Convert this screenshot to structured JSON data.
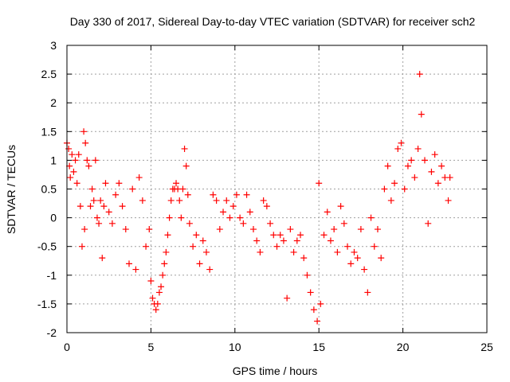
{
  "chart_data": {
    "type": "scatter",
    "title": "Day 330 of 2017, Sidereal Day-to-day VTEC variation (SDTVAR) for receiver sch2",
    "xlabel": "GPS time / hours",
    "ylabel": "SDTVAR / TECUs",
    "xlim": [
      0,
      25
    ],
    "ylim": [
      -2,
      3
    ],
    "xticks": [
      0,
      5,
      10,
      15,
      20,
      25
    ],
    "yticks": [
      -2,
      -1.5,
      -1,
      -0.5,
      0,
      0.5,
      1,
      1.5,
      2,
      2.5,
      3
    ],
    "grid": true,
    "marker": "+",
    "series": [
      {
        "name": "sch2",
        "color": "#ff0000",
        "points": [
          [
            0.0,
            1.3
          ],
          [
            0.1,
            1.2
          ],
          [
            0.15,
            0.9
          ],
          [
            0.2,
            0.7
          ],
          [
            0.3,
            1.1
          ],
          [
            0.4,
            0.8
          ],
          [
            0.5,
            1.0
          ],
          [
            0.6,
            0.6
          ],
          [
            0.7,
            1.1
          ],
          [
            0.8,
            0.2
          ],
          [
            0.9,
            -0.5
          ],
          [
            1.0,
            1.5
          ],
          [
            1.05,
            -0.2
          ],
          [
            1.1,
            1.3
          ],
          [
            1.2,
            1.0
          ],
          [
            1.3,
            0.9
          ],
          [
            1.4,
            0.2
          ],
          [
            1.5,
            0.5
          ],
          [
            1.6,
            0.3
          ],
          [
            1.7,
            1.0
          ],
          [
            1.8,
            0.0
          ],
          [
            1.9,
            -0.1
          ],
          [
            2.0,
            0.3
          ],
          [
            2.1,
            -0.7
          ],
          [
            2.2,
            0.2
          ],
          [
            2.3,
            0.6
          ],
          [
            2.5,
            0.1
          ],
          [
            2.7,
            -0.1
          ],
          [
            2.9,
            0.4
          ],
          [
            3.1,
            0.6
          ],
          [
            3.3,
            0.2
          ],
          [
            3.5,
            -0.2
          ],
          [
            3.7,
            -0.8
          ],
          [
            3.9,
            0.5
          ],
          [
            4.1,
            -0.9
          ],
          [
            4.3,
            0.7
          ],
          [
            4.5,
            0.3
          ],
          [
            4.7,
            -0.5
          ],
          [
            4.9,
            -0.2
          ],
          [
            5.0,
            -1.1
          ],
          [
            5.1,
            -1.4
          ],
          [
            5.2,
            -1.5
          ],
          [
            5.3,
            -1.6
          ],
          [
            5.4,
            -1.5
          ],
          [
            5.5,
            -1.3
          ],
          [
            5.6,
            -1.2
          ],
          [
            5.7,
            -1.0
          ],
          [
            5.8,
            -0.8
          ],
          [
            5.9,
            -0.6
          ],
          [
            6.0,
            -0.3
          ],
          [
            6.1,
            0.0
          ],
          [
            6.2,
            0.3
          ],
          [
            6.3,
            0.5
          ],
          [
            6.4,
            0.5
          ],
          [
            6.5,
            0.6
          ],
          [
            6.6,
            0.5
          ],
          [
            6.7,
            0.3
          ],
          [
            6.8,
            0.0
          ],
          [
            6.9,
            0.5
          ],
          [
            7.0,
            1.2
          ],
          [
            7.1,
            0.9
          ],
          [
            7.2,
            0.4
          ],
          [
            7.3,
            -0.1
          ],
          [
            7.5,
            -0.5
          ],
          [
            7.7,
            -0.3
          ],
          [
            7.9,
            -0.8
          ],
          [
            8.1,
            -0.4
          ],
          [
            8.3,
            -0.6
          ],
          [
            8.5,
            -0.9
          ],
          [
            8.7,
            0.4
          ],
          [
            8.9,
            0.3
          ],
          [
            9.1,
            -0.2
          ],
          [
            9.3,
            0.1
          ],
          [
            9.5,
            0.3
          ],
          [
            9.7,
            0.0
          ],
          [
            9.9,
            0.2
          ],
          [
            10.1,
            0.4
          ],
          [
            10.3,
            0.0
          ],
          [
            10.5,
            -0.1
          ],
          [
            10.7,
            0.4
          ],
          [
            10.9,
            0.1
          ],
          [
            11.1,
            -0.2
          ],
          [
            11.3,
            -0.4
          ],
          [
            11.5,
            -0.6
          ],
          [
            11.7,
            0.3
          ],
          [
            11.9,
            0.2
          ],
          [
            12.1,
            -0.1
          ],
          [
            12.3,
            -0.3
          ],
          [
            12.5,
            -0.5
          ],
          [
            12.7,
            -0.3
          ],
          [
            12.9,
            -0.4
          ],
          [
            13.1,
            -1.4
          ],
          [
            13.3,
            -0.2
          ],
          [
            13.5,
            -0.6
          ],
          [
            13.7,
            -0.4
          ],
          [
            13.9,
            -0.3
          ],
          [
            14.1,
            -0.7
          ],
          [
            14.3,
            -1.0
          ],
          [
            14.5,
            -1.3
          ],
          [
            14.7,
            -1.6
          ],
          [
            14.9,
            -1.8
          ],
          [
            15.0,
            0.6
          ],
          [
            15.1,
            -1.5
          ],
          [
            15.3,
            -0.3
          ],
          [
            15.5,
            0.1
          ],
          [
            15.7,
            -0.4
          ],
          [
            15.9,
            -0.2
          ],
          [
            16.1,
            -0.6
          ],
          [
            16.3,
            0.2
          ],
          [
            16.5,
            -0.1
          ],
          [
            16.7,
            -0.5
          ],
          [
            16.9,
            -0.8
          ],
          [
            17.1,
            -0.6
          ],
          [
            17.3,
            -0.7
          ],
          [
            17.5,
            -0.2
          ],
          [
            17.7,
            -0.9
          ],
          [
            17.9,
            -1.3
          ],
          [
            18.1,
            0.0
          ],
          [
            18.3,
            -0.5
          ],
          [
            18.5,
            -0.2
          ],
          [
            18.7,
            -0.7
          ],
          [
            18.9,
            0.5
          ],
          [
            19.1,
            0.9
          ],
          [
            19.3,
            0.3
          ],
          [
            19.5,
            0.6
          ],
          [
            19.7,
            1.2
          ],
          [
            19.9,
            1.3
          ],
          [
            20.1,
            0.5
          ],
          [
            20.3,
            0.9
          ],
          [
            20.5,
            1.0
          ],
          [
            20.7,
            0.7
          ],
          [
            20.9,
            1.2
          ],
          [
            21.0,
            2.5
          ],
          [
            21.1,
            1.8
          ],
          [
            21.3,
            1.0
          ],
          [
            21.5,
            -0.1
          ],
          [
            21.7,
            0.8
          ],
          [
            21.9,
            1.1
          ],
          [
            22.1,
            0.6
          ],
          [
            22.3,
            0.9
          ],
          [
            22.5,
            0.7
          ],
          [
            22.7,
            0.3
          ],
          [
            22.8,
            0.7
          ]
        ]
      }
    ]
  }
}
